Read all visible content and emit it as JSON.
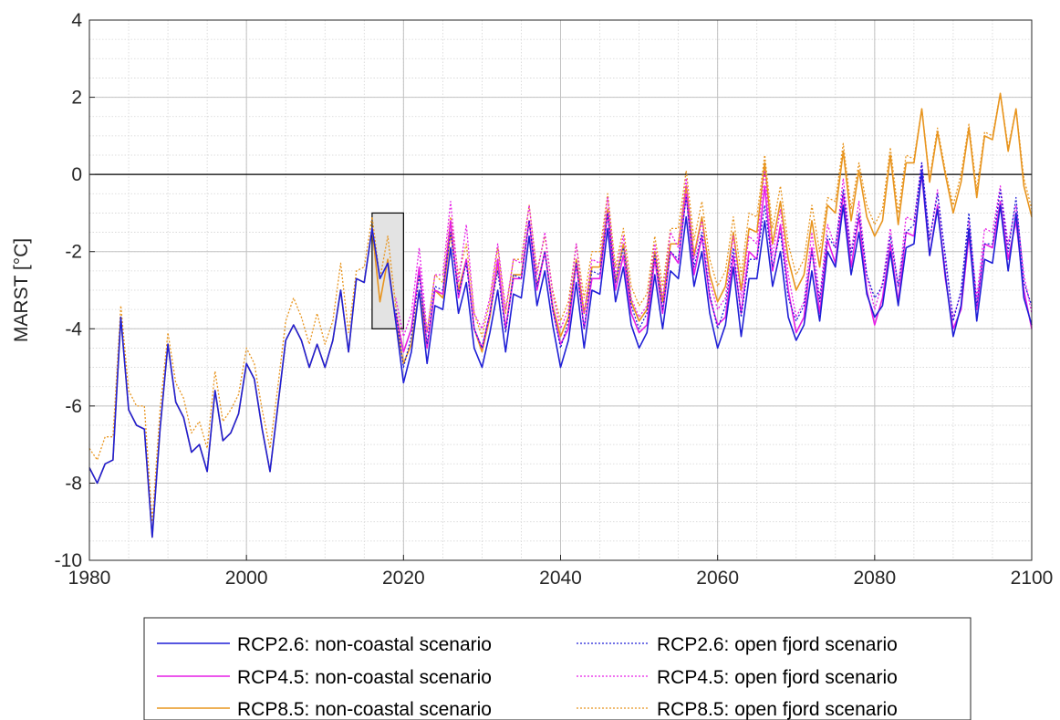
{
  "chart_data": {
    "type": "line",
    "title": "",
    "xlabel": "",
    "ylabel": "MARST [°C]",
    "xlim": [
      1980,
      2100
    ],
    "ylim": [
      -10,
      4
    ],
    "xticks": [
      1980,
      2000,
      2020,
      2040,
      2060,
      2080,
      2100
    ],
    "yticks": [
      -10,
      -8,
      -6,
      -4,
      -2,
      0,
      2,
      4
    ],
    "xtick_labels": [
      "1980",
      "2000",
      "2020",
      "2040",
      "2060",
      "2080",
      "2100"
    ],
    "ytick_labels": [
      "-10",
      "-8",
      "-6",
      "-4",
      "-2",
      "0",
      "2",
      "4"
    ],
    "grid": true,
    "minor_grid": true,
    "reference_line": {
      "y": 0,
      "color": "#000000"
    },
    "highlight_box": {
      "x": [
        2016,
        2020
      ],
      "y": [
        -4,
        -1
      ]
    },
    "legend": {
      "placement": "bottom-outside",
      "columns": 2
    },
    "colors": {
      "rcp26": "#1f1fd6",
      "rcp45": "#e61ee6",
      "rcp85": "#e8951f"
    },
    "historical_x": [
      1980,
      1981,
      1982,
      1983,
      1984,
      1985,
      1986,
      1987,
      1988,
      1989,
      1990,
      1991,
      1992,
      1993,
      1994,
      1995,
      1996,
      1997,
      1998,
      1999,
      2000,
      2001,
      2002,
      2003,
      2004,
      2005,
      2006,
      2007,
      2008,
      2009,
      2010,
      2011,
      2012,
      2013,
      2014,
      2015,
      2016,
      2017,
      2018,
      2019
    ],
    "proj_x": [
      2019,
      2020,
      2021,
      2022,
      2023,
      2024,
      2025,
      2026,
      2027,
      2028,
      2029,
      2030,
      2031,
      2032,
      2033,
      2034,
      2035,
      2036,
      2037,
      2038,
      2039,
      2040,
      2041,
      2042,
      2043,
      2044,
      2045,
      2046,
      2047,
      2048,
      2049,
      2050,
      2051,
      2052,
      2053,
      2054,
      2055,
      2056,
      2057,
      2058,
      2059,
      2060,
      2061,
      2062,
      2063,
      2064,
      2065,
      2066,
      2067,
      2068,
      2069,
      2070,
      2071,
      2072,
      2073,
      2074,
      2075,
      2076,
      2077,
      2078,
      2079,
      2080,
      2081,
      2082,
      2083,
      2084,
      2085,
      2086,
      2087,
      2088,
      2089,
      2090,
      2091,
      2092,
      2093,
      2094,
      2095,
      2096,
      2097,
      2098,
      2099,
      2100
    ],
    "series": [
      {
        "name": "RCP2.6: non-coastal scenario",
        "key": "rcp26",
        "style": "solid",
        "hist": [
          -7.6,
          -8.0,
          -7.5,
          -7.4,
          -3.7,
          -6.1,
          -6.5,
          -6.6,
          -9.4,
          -6.6,
          -4.4,
          -5.9,
          -6.3,
          -7.2,
          -7.0,
          -7.7,
          -5.6,
          -6.9,
          -6.7,
          -6.2,
          -4.9,
          -5.3,
          -6.6,
          -7.7,
          -6.0,
          -4.3,
          -3.9,
          -4.3,
          -5.0,
          -4.4,
          -5.0,
          -4.3,
          -3.0,
          -4.6,
          -2.7,
          -2.8,
          -1.4,
          -2.7,
          -2.3,
          -3.8
        ],
        "proj": [
          -3.8,
          -5.4,
          -4.6,
          -3.0,
          -4.9,
          -3.4,
          -3.5,
          -1.9,
          -3.6,
          -2.8,
          -4.5,
          -5.0,
          -4.1,
          -3.0,
          -4.6,
          -3.1,
          -3.2,
          -1.6,
          -3.4,
          -2.5,
          -3.9,
          -5.0,
          -4.3,
          -2.8,
          -4.5,
          -3.0,
          -3.1,
          -1.4,
          -3.3,
          -2.4,
          -3.9,
          -4.5,
          -4.1,
          -2.6,
          -4.0,
          -2.5,
          -2.7,
          -1.1,
          -2.9,
          -2.0,
          -3.6,
          -4.5,
          -3.9,
          -2.4,
          -4.2,
          -2.7,
          -2.7,
          -1.2,
          -2.9,
          -2.0,
          -3.7,
          -4.3,
          -3.9,
          -2.5,
          -3.8,
          -2.0,
          -2.4,
          -0.8,
          -2.6,
          -1.5,
          -3.1,
          -3.7,
          -3.4,
          -2.0,
          -3.4,
          -1.9,
          -1.8,
          0.1,
          -2.1,
          -0.9,
          -2.6,
          -4.2,
          -3.4,
          -1.4,
          -3.8,
          -2.2,
          -2.3,
          -0.8,
          -2.5,
          -1.0,
          -3.2,
          -3.9
        ]
      },
      {
        "name": "RCP2.6: open fjord scenario",
        "key": "rcp26",
        "style": "dotted",
        "proj": [
          -3.5,
          -5.0,
          -4.2,
          -2.6,
          -4.4,
          -2.9,
          -3.0,
          -1.5,
          -3.1,
          -2.3,
          -4.0,
          -4.5,
          -3.6,
          -2.5,
          -4.1,
          -2.6,
          -2.7,
          -1.2,
          -2.9,
          -2.0,
          -3.5,
          -4.5,
          -3.8,
          -2.3,
          -4.0,
          -2.5,
          -2.6,
          -1.0,
          -2.8,
          -1.9,
          -3.4,
          -4.0,
          -3.6,
          -2.1,
          -3.5,
          -2.0,
          -2.2,
          -0.6,
          -2.4,
          -1.5,
          -3.1,
          -4.0,
          -3.4,
          -1.9,
          -3.7,
          -2.2,
          -2.2,
          -0.8,
          -2.4,
          -1.5,
          -3.2,
          -3.8,
          -3.4,
          -2.0,
          -3.3,
          -1.6,
          -1.9,
          -0.4,
          -2.1,
          -1.0,
          -2.6,
          -3.2,
          -2.9,
          -1.6,
          -2.9,
          -1.5,
          -1.3,
          0.3,
          -1.7,
          -0.5,
          -2.1,
          -3.8,
          -3.0,
          -1.0,
          -3.4,
          -1.8,
          -1.8,
          -0.4,
          -2.0,
          -0.6,
          -2.8,
          -3.4
        ]
      },
      {
        "name": "RCP4.5: non-coastal scenario",
        "key": "rcp45",
        "style": "solid",
        "proj": [
          -3.6,
          -4.6,
          -4.0,
          -2.4,
          -4.5,
          -3.0,
          -3.1,
          -1.2,
          -3.2,
          -2.2,
          -4.0,
          -4.5,
          -3.6,
          -2.2,
          -4.0,
          -2.7,
          -2.7,
          -1.2,
          -3.0,
          -2.0,
          -3.5,
          -4.4,
          -4.0,
          -2.3,
          -4.0,
          -2.7,
          -2.7,
          -1.0,
          -3.0,
          -2.1,
          -3.6,
          -4.1,
          -3.9,
          -2.2,
          -3.6,
          -2.0,
          -2.3,
          -0.5,
          -2.6,
          -1.6,
          -3.2,
          -3.9,
          -3.7,
          -2.1,
          -3.6,
          -2.0,
          -2.2,
          -0.3,
          -2.5,
          -1.3,
          -3.0,
          -4.1,
          -3.7,
          -1.9,
          -3.6,
          -1.7,
          -2.3,
          -0.5,
          -2.4,
          -1.1,
          -3.0,
          -3.9,
          -3.2,
          -1.8,
          -3.3,
          -1.5,
          -1.6,
          0.0,
          -2.1,
          -0.8,
          -2.7,
          -4.0,
          -3.5,
          -1.6,
          -3.5,
          -1.8,
          -1.9,
          -0.7,
          -2.2,
          -1.2,
          -3.0,
          -4.0
        ]
      },
      {
        "name": "RCP4.5: open fjord scenario",
        "key": "rcp45",
        "style": "dotted",
        "proj": [
          -3.2,
          -4.2,
          -3.6,
          -1.9,
          -4.1,
          -2.6,
          -2.6,
          -0.7,
          -2.8,
          -1.3,
          -3.6,
          -4.0,
          -3.2,
          -1.8,
          -3.5,
          -2.2,
          -2.3,
          -0.8,
          -2.6,
          -1.5,
          -3.1,
          -4.0,
          -3.5,
          -1.8,
          -3.6,
          -2.2,
          -2.3,
          -0.6,
          -2.6,
          -1.6,
          -3.2,
          -3.7,
          -3.4,
          -1.8,
          -3.2,
          -1.5,
          -1.9,
          -0.1,
          -2.2,
          -1.2,
          -2.8,
          -3.5,
          -3.2,
          -1.6,
          -3.2,
          -1.6,
          -1.8,
          0.1,
          -2.1,
          -0.9,
          -2.6,
          -3.7,
          -3.3,
          -1.5,
          -3.2,
          -1.3,
          -1.9,
          -0.1,
          -2.0,
          -0.7,
          -2.6,
          -3.5,
          -2.8,
          -1.4,
          -2.9,
          -1.1,
          -1.2,
          0.3,
          -1.7,
          -0.4,
          -2.3,
          -3.7,
          -3.1,
          -1.2,
          -3.2,
          -1.4,
          -1.5,
          -0.3,
          -1.8,
          -0.8,
          -2.6,
          -3.6
        ]
      },
      {
        "name": "RCP8.5: non-coastal scenario",
        "key": "rcp85",
        "style": "solid",
        "hist": [
          -7.6,
          -8.0,
          -7.5,
          -7.4,
          -3.7,
          -6.1,
          -6.5,
          -6.6,
          -9.4,
          -6.6,
          -4.4,
          -5.9,
          -6.3,
          -7.2,
          -7.0,
          -7.7,
          -5.6,
          -6.9,
          -6.7,
          -6.2,
          -4.9,
          -5.3,
          -6.6,
          -7.7,
          -6.0,
          -4.3,
          -3.9,
          -4.3,
          -5.0,
          -4.4,
          -5.0,
          -4.3,
          -3.0,
          -4.6,
          -2.7,
          -2.8,
          -1.4,
          -3.3,
          -2.2,
          -3.8
        ],
        "proj": [
          -3.8,
          -4.9,
          -4.4,
          -3.0,
          -4.5,
          -3.0,
          -3.2,
          -1.5,
          -3.0,
          -2.2,
          -4.0,
          -4.6,
          -3.7,
          -2.3,
          -4.0,
          -2.6,
          -2.6,
          -1.2,
          -2.9,
          -2.0,
          -3.4,
          -4.2,
          -3.7,
          -2.2,
          -3.6,
          -2.4,
          -2.4,
          -0.9,
          -2.8,
          -1.8,
          -3.3,
          -3.8,
          -3.5,
          -2.0,
          -3.3,
          -1.8,
          -1.8,
          -0.3,
          -2.1,
          -1.1,
          -2.6,
          -3.3,
          -2.9,
          -1.5,
          -3.0,
          -1.4,
          -1.5,
          0.3,
          -1.8,
          -0.7,
          -2.2,
          -3.0,
          -2.6,
          -1.2,
          -2.4,
          -0.8,
          -1.0,
          0.6,
          -1.2,
          0.1,
          -1.1,
          -1.6,
          -1.2,
          0.5,
          -1.3,
          0.3,
          0.3,
          1.7,
          -0.2,
          1.1,
          0.0,
          -1.0,
          -0.2,
          1.2,
          -0.6,
          1.0,
          0.9,
          2.1,
          0.6,
          1.7,
          -0.3,
          -1.1
        ]
      },
      {
        "name": "RCP8.5: open fjord scenario",
        "key": "rcp85",
        "style": "dotted",
        "hist": [
          -7.1,
          -7.4,
          -6.8,
          -6.8,
          -3.4,
          -5.6,
          -6.0,
          -6.0,
          -9.0,
          -6.1,
          -4.1,
          -5.4,
          -5.8,
          -6.7,
          -6.4,
          -7.1,
          -5.1,
          -6.4,
          -6.1,
          -5.7,
          -4.5,
          -4.9,
          -6.1,
          -7.1,
          -5.5,
          -3.8,
          -3.2,
          -3.7,
          -4.4,
          -3.6,
          -4.4,
          -3.8,
          -2.3,
          -4.1,
          -2.5,
          -2.4,
          -1.1,
          -2.7,
          -1.6,
          -3.4
        ],
        "proj": [
          -3.4,
          -4.6,
          -4.0,
          -2.6,
          -4.1,
          -2.6,
          -2.8,
          -1.1,
          -2.6,
          -1.8,
          -3.6,
          -4.2,
          -3.3,
          -1.9,
          -3.6,
          -2.2,
          -2.2,
          -0.8,
          -2.5,
          -1.6,
          -3.0,
          -3.8,
          -3.3,
          -1.8,
          -3.2,
          -2.0,
          -2.0,
          -0.5,
          -2.4,
          -1.4,
          -2.9,
          -3.4,
          -3.1,
          -1.6,
          -2.9,
          -1.4,
          -1.4,
          0.1,
          -1.7,
          -0.7,
          -2.2,
          -2.9,
          -2.5,
          -1.1,
          -2.6,
          -1.0,
          -1.1,
          0.5,
          -1.4,
          -0.3,
          -1.8,
          -2.6,
          -2.2,
          -0.8,
          -2.0,
          -0.6,
          -0.7,
          0.8,
          -0.9,
          0.3,
          -0.8,
          -1.3,
          -0.9,
          0.7,
          -1.0,
          0.5,
          0.4,
          1.7,
          -0.1,
          1.2,
          0.1,
          -0.8,
          0.0,
          1.3,
          -0.4,
          1.1,
          1.0,
          2.1,
          0.7,
          1.7,
          -0.1,
          -0.9
        ]
      }
    ]
  }
}
